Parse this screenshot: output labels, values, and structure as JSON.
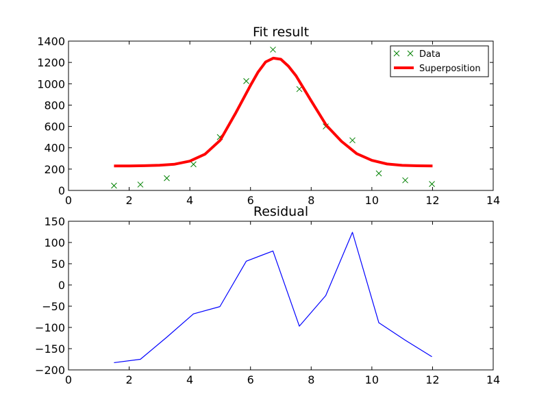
{
  "chart_data": [
    {
      "type": "line",
      "title": "Fit result",
      "xlim": [
        0,
        14
      ],
      "ylim": [
        0,
        1400
      ],
      "xticks": [
        "0",
        "2",
        "4",
        "6",
        "8",
        "10",
        "12",
        "14"
      ],
      "yticks": [
        "0",
        "200",
        "400",
        "600",
        "800",
        "1000",
        "1200",
        "1400"
      ],
      "grid": false,
      "legend": "top-right",
      "series": [
        {
          "name": "Data",
          "style": "markers-x",
          "color": "#008000",
          "x": [
            1.5,
            2.37,
            3.24,
            4.12,
            4.99,
            5.86,
            6.74,
            7.61,
            8.48,
            9.36,
            10.23,
            11.1,
            11.98
          ],
          "y": [
            45,
            55,
            115,
            245,
            500,
            1025,
            1320,
            950,
            600,
            470,
            160,
            95,
            60
          ]
        },
        {
          "name": "Superposition",
          "style": "line",
          "color": "#ff0000",
          "x": [
            1.5,
            2.0,
            2.5,
            3.0,
            3.5,
            4.0,
            4.5,
            5.0,
            5.5,
            6.0,
            6.25,
            6.5,
            6.75,
            7.0,
            7.25,
            7.5,
            8.0,
            8.5,
            9.0,
            9.5,
            10.0,
            10.5,
            11.0,
            11.5,
            12.0
          ],
          "y": [
            230,
            230,
            232,
            236,
            246,
            275,
            340,
            470,
            720,
            985,
            1110,
            1205,
            1240,
            1230,
            1165,
            1075,
            840,
            610,
            460,
            345,
            282,
            248,
            235,
            231,
            230
          ]
        }
      ]
    },
    {
      "type": "line",
      "title": "Residual",
      "xlim": [
        0,
        14
      ],
      "ylim": [
        -200,
        150
      ],
      "xticks": [
        "0",
        "2",
        "4",
        "6",
        "8",
        "10",
        "12",
        "14"
      ],
      "yticks": [
        "150",
        "100",
        "50",
        "0",
        "−50",
        "−100",
        "−150",
        "−200"
      ],
      "grid": false,
      "series": [
        {
          "color": "#0000ff",
          "x": [
            1.5,
            2.37,
            3.24,
            4.12,
            4.99,
            5.86,
            6.74,
            7.61,
            8.48,
            9.36,
            10.23,
            11.1,
            11.98
          ],
          "y": [
            -183,
            -175,
            -123,
            -68,
            -51,
            56,
            80,
            -97,
            -25,
            124,
            -89,
            -130,
            -169
          ]
        }
      ]
    }
  ]
}
